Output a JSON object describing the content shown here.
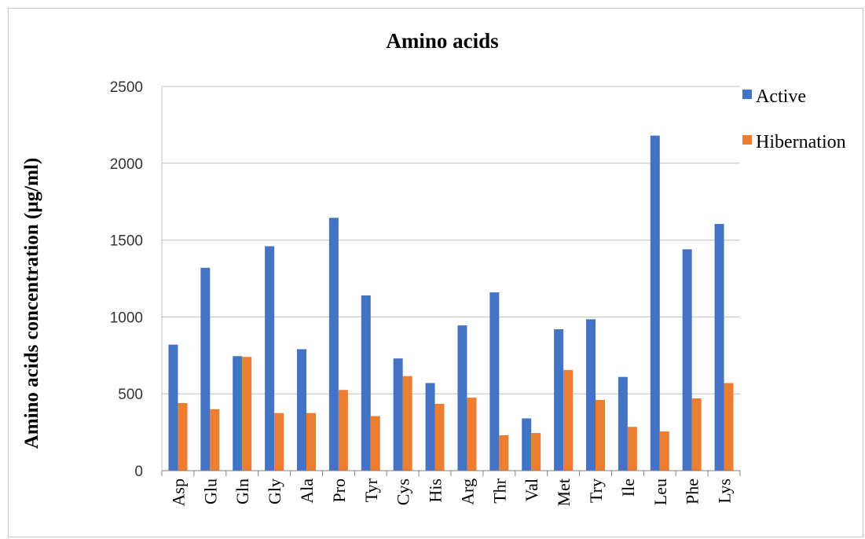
{
  "chart_data": {
    "type": "bar",
    "title": "Amino acids",
    "xlabel": "",
    "ylabel": "Amino acids concentration (µg/ml)",
    "ylim": [
      0,
      2500
    ],
    "yticks": [
      "0",
      "500",
      "1000",
      "1500",
      "2000",
      "2500"
    ],
    "grid": true,
    "legend_position": "top-right",
    "categories": [
      "Asp",
      "Glu",
      "Gln",
      "Gly",
      "Ala",
      "Pro",
      "Tyr",
      "Cys",
      "His",
      "Arg",
      "Thr",
      "Val",
      "Met",
      "Try",
      "Ile",
      "Leu",
      "Phe",
      "Lys"
    ],
    "series": [
      {
        "name": "Active",
        "color": "#4472C4",
        "values": [
          820,
          1320,
          745,
          1460,
          790,
          1645,
          1140,
          730,
          570,
          945,
          1160,
          340,
          920,
          985,
          610,
          2180,
          1440,
          1605
        ]
      },
      {
        "name": "Hibernation",
        "color": "#ED7D31",
        "values": [
          440,
          400,
          740,
          375,
          375,
          525,
          355,
          615,
          435,
          475,
          230,
          245,
          655,
          460,
          285,
          255,
          470,
          570
        ]
      }
    ]
  }
}
